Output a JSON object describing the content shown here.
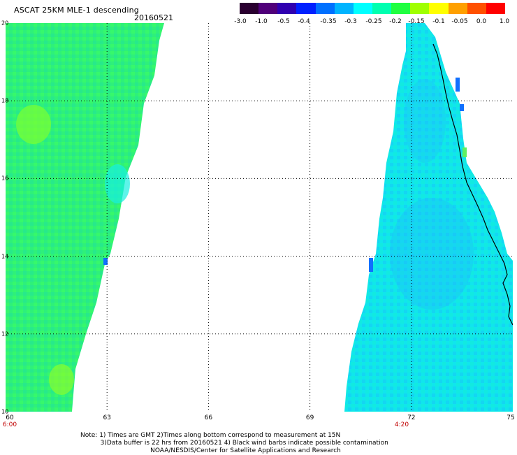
{
  "header": {
    "title": "ASCAT 25KM MLE-1 descending",
    "date": "20160521"
  },
  "colorbar": {
    "labels": [
      "-3.0",
      "-1.0",
      "-0.5",
      "-0.4",
      "-0.35",
      "-0.3",
      "-0.25",
      "-0.2",
      "-0.15",
      "-0.1",
      "-0.05",
      "0.0",
      "1.0"
    ],
    "colors": [
      "#2a0030",
      "#50007a",
      "#3000b0",
      "#0020ff",
      "#0070ff",
      "#00b4ff",
      "#00ffff",
      "#00ffb0",
      "#20ff40",
      "#a0ff00",
      "#ffff00",
      "#ffa000",
      "#ff5000",
      "#ff0000"
    ]
  },
  "map": {
    "lat_labels": [
      "20",
      "18",
      "16",
      "14",
      "12",
      "10"
    ],
    "lon_labels": [
      "60",
      "63",
      "66",
      "69",
      "72",
      "75"
    ],
    "time_labels": [
      "6:00",
      "4:20"
    ],
    "lat_range": [
      10,
      20
    ],
    "lon_range": [
      60,
      75
    ],
    "swath_left_color": "#30f080",
    "swath_right_color": "#10e0e8"
  },
  "notes": {
    "line1": "Note: 1) Times are GMT 2)Times along bottom correspond to measurement at 15N",
    "line2": "3)Data buffer is 22 hrs from 20160521 4) Black wind barbs indicate possible contamination",
    "line3": "NOAA/NESDIS/Center for Satellite Applications and Research"
  }
}
